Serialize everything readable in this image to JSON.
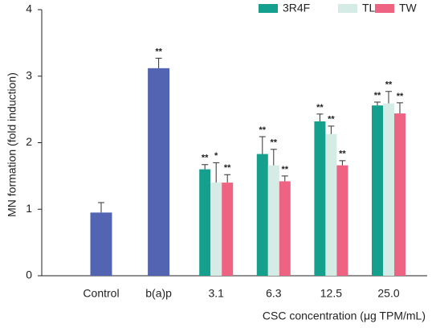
{
  "chart_data": {
    "type": "bar",
    "ylabel": "MN formation (fold induction)",
    "xlabel": "CSC concentration (μg TPM/mL)",
    "categories": [
      "Control",
      "b(a)p",
      "3.1",
      "6.3",
      "12.5",
      "25.0"
    ],
    "ylim": [
      0,
      4
    ],
    "yticks": [
      0,
      1,
      2,
      3,
      4
    ],
    "legend": "top-right",
    "series": [
      {
        "color": "#5264b2",
        "values": [
          0.95,
          3.12,
          null,
          null,
          null,
          null
        ],
        "errors": [
          0.15,
          0.15,
          null,
          null,
          null,
          null
        ],
        "significance": [
          null,
          "**",
          null,
          null,
          null,
          null
        ]
      },
      {
        "name": "3R4F",
        "color": "#14a08c",
        "values": [
          null,
          null,
          1.6,
          1.83,
          2.32,
          2.56
        ],
        "errors": [
          null,
          null,
          0.07,
          0.26,
          0.11,
          0.05
        ],
        "significance": [
          null,
          null,
          "**",
          "**",
          "**",
          "**"
        ]
      },
      {
        "name": "TL",
        "color": "#d5ebe6",
        "values": [
          null,
          null,
          1.4,
          1.66,
          2.13,
          2.59
        ],
        "errors": [
          null,
          null,
          0.3,
          0.24,
          0.12,
          0.18
        ],
        "significance": [
          null,
          null,
          "*",
          "**",
          "**",
          "**"
        ]
      },
      {
        "name": "TW",
        "color": "#ef6382",
        "values": [
          null,
          null,
          1.4,
          1.42,
          1.66,
          2.44
        ],
        "errors": [
          null,
          null,
          0.12,
          0.08,
          0.07,
          0.16
        ],
        "significance": [
          null,
          null,
          "**",
          "**",
          "**",
          "**"
        ]
      }
    ]
  }
}
